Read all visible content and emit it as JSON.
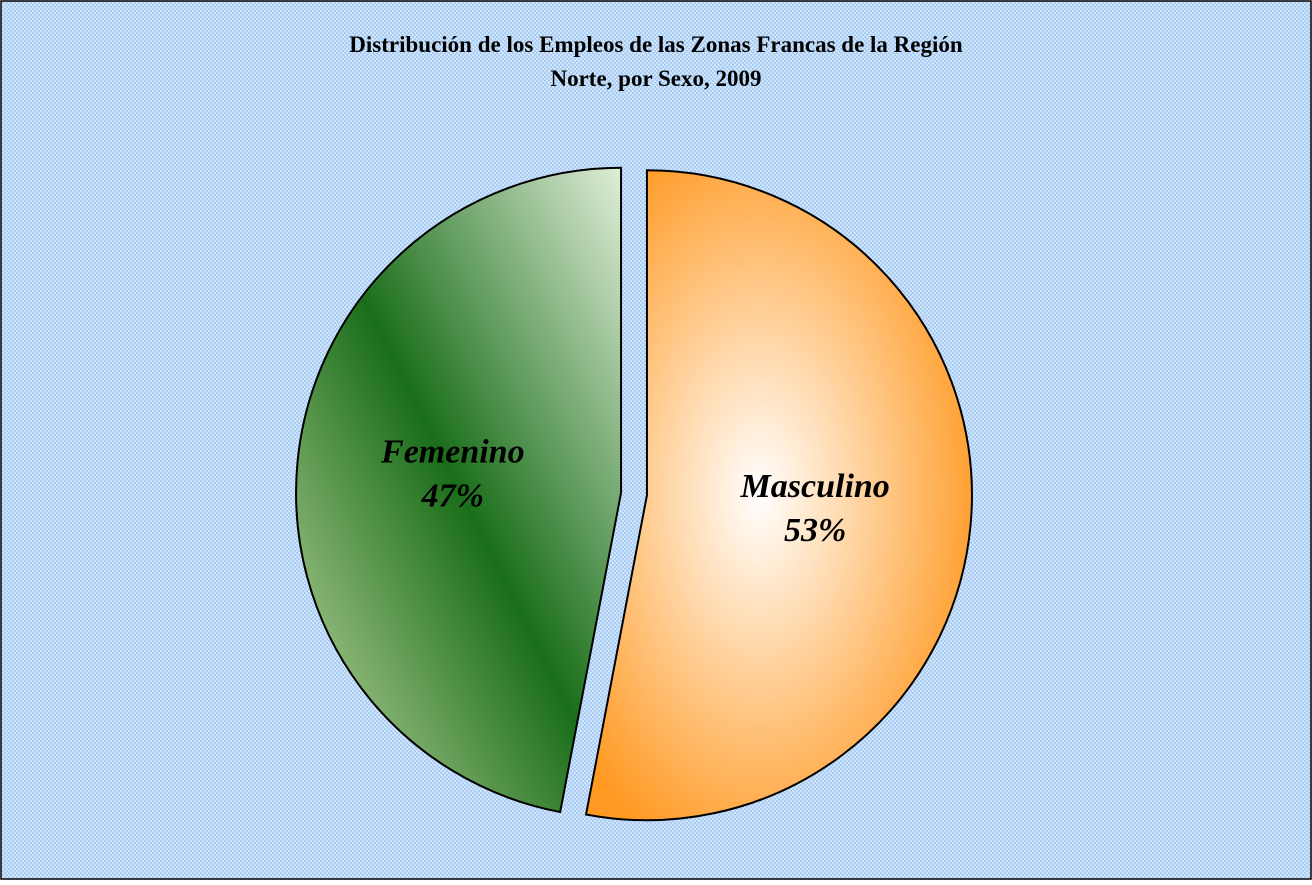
{
  "chart_data": {
    "type": "pie",
    "title": "Distribución de los Empleos de las Zonas Francas de la Región Norte, por Sexo, 2009",
    "categories": [
      "Masculino",
      "Femenino"
    ],
    "values": [
      53,
      47
    ],
    "value_labels": [
      "53%",
      "47%"
    ],
    "colors": [
      "#ff9922",
      "#1a6e1a"
    ]
  }
}
